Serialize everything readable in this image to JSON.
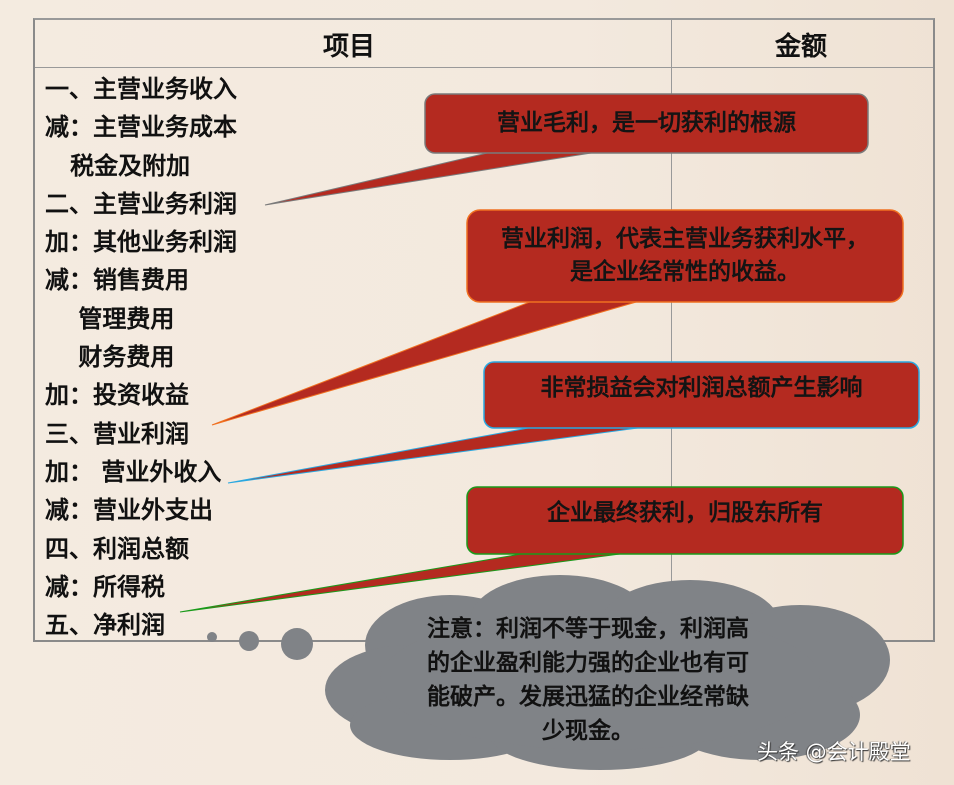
{
  "table": {
    "headers": [
      "项目",
      "金额"
    ],
    "rows": [
      "一、主营业务收入",
      "减：主营业务成本",
      "   税金及附加",
      "二、主营业务利润",
      "加：其他业务利润",
      "减：销售费用",
      "    管理费用",
      "    财务费用",
      "加：投资收益",
      "三、营业利润",
      "加： 营业外收入",
      "减：营业外支出",
      "四、利润总额",
      "减：所得税",
      "五、净利润"
    ]
  },
  "callouts": [
    {
      "text": "营业毛利，是一切获利的根源",
      "fill": "#b42a20",
      "border": "#7a7a7a"
    },
    {
      "text": "营业利润，代表主营业务获利水平，\n是企业经常性的收益。",
      "fill": "#b42a20",
      "border": "#f07020"
    },
    {
      "text": "非常损益会对利润总额产生影响",
      "fill": "#b42a20",
      "border": "#2aa8e0"
    },
    {
      "text": "企业最终获利，归股东所有",
      "fill": "#b42a20",
      "border": "#1a9a1a"
    }
  ],
  "note": {
    "text": "注意：利润不等于现金，利润高的企业盈利能力强的企业也有可能破产。发展迅猛的企业经常缺少现金。",
    "fill": "#808387"
  },
  "watermark": "头条 @会计殿堂"
}
